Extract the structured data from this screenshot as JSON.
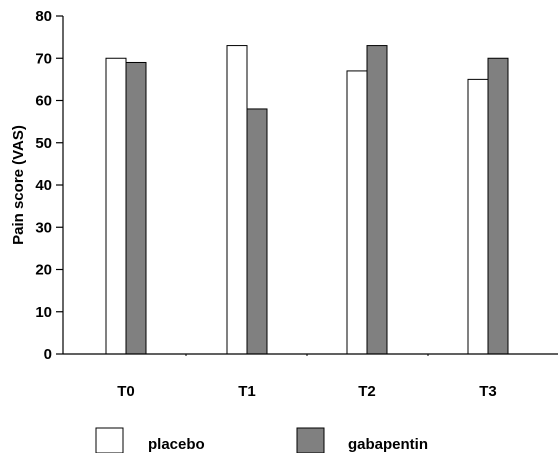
{
  "chart_data": {
    "type": "bar",
    "title": "",
    "xlabel": "",
    "ylabel": "Pain score (VAS)",
    "categories": [
      "T0",
      "T1",
      "T2",
      "T3"
    ],
    "ylim": [
      0,
      80
    ],
    "yticks": [
      0,
      10,
      20,
      30,
      40,
      50,
      60,
      70,
      80
    ],
    "grid": false,
    "legend_position": "bottom",
    "series": [
      {
        "name": "placebo",
        "values": [
          70,
          73,
          67,
          65
        ],
        "color": "#ffffff"
      },
      {
        "name": "gabapentin",
        "values": [
          69,
          58,
          73,
          70
        ],
        "color": "#808080"
      }
    ]
  }
}
